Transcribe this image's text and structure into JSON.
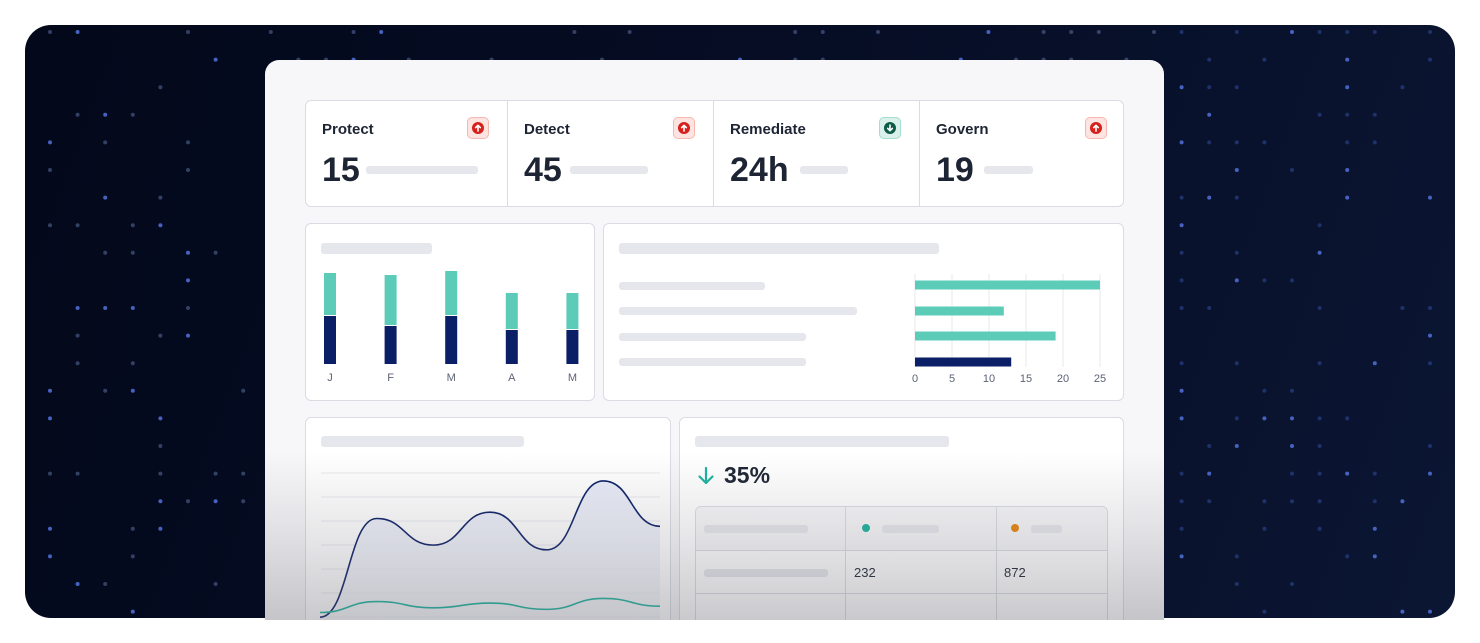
{
  "kpis": [
    {
      "label": "Protect",
      "value": "15",
      "trend": "up"
    },
    {
      "label": "Detect",
      "value": "45",
      "trend": "up"
    },
    {
      "label": "Remediate",
      "value": "24h",
      "trend": "down"
    },
    {
      "label": "Govern",
      "value": "19",
      "trend": "up"
    }
  ],
  "colors": {
    "navy": "#0b1f66",
    "teal": "#5ccbb8",
    "up_red": "#d6201c",
    "down_green": "#0d6b52",
    "dot_orange": "#e8850c",
    "dot_teal": "#1bb39d"
  },
  "icons": {
    "up": "arrow-up-circle-icon",
    "down": "arrow-down-circle-icon",
    "decrease": "arrow-down-icon"
  },
  "bar_chart": {
    "chart_data": {
      "type": "bar",
      "stacked": true,
      "categories": [
        "J",
        "F",
        "M",
        "A",
        "M"
      ],
      "series": [
        {
          "values": [
            12,
            9.5,
            12,
            8.5,
            8.5
          ]
        },
        {
          "values": [
            10.5,
            12.5,
            11,
            9,
            9
          ]
        }
      ]
    }
  },
  "hbar_chart": {
    "chart_data": {
      "type": "bar",
      "orientation": "horizontal",
      "values": [
        25,
        12,
        19,
        13
      ],
      "highlight_index": 3,
      "x_ticks": [
        "0",
        "5",
        "10",
        "15",
        "20",
        "25"
      ],
      "xlim": [
        0,
        25
      ]
    }
  },
  "line_chart": {
    "chart_data": {
      "type": "line",
      "series": [
        {
          "values": [
            1.2,
            7.5,
            5.8,
            7.9,
            5.5,
            9.9,
            7.0
          ]
        },
        {
          "values": [
            1.5,
            2.2,
            1.8,
            2.1,
            1.7,
            2.4,
            1.9
          ]
        }
      ],
      "ylim": [
        0,
        12
      ]
    }
  },
  "summary": {
    "change": "35%",
    "rows": [
      {
        "a": "232",
        "b": "872"
      }
    ]
  }
}
